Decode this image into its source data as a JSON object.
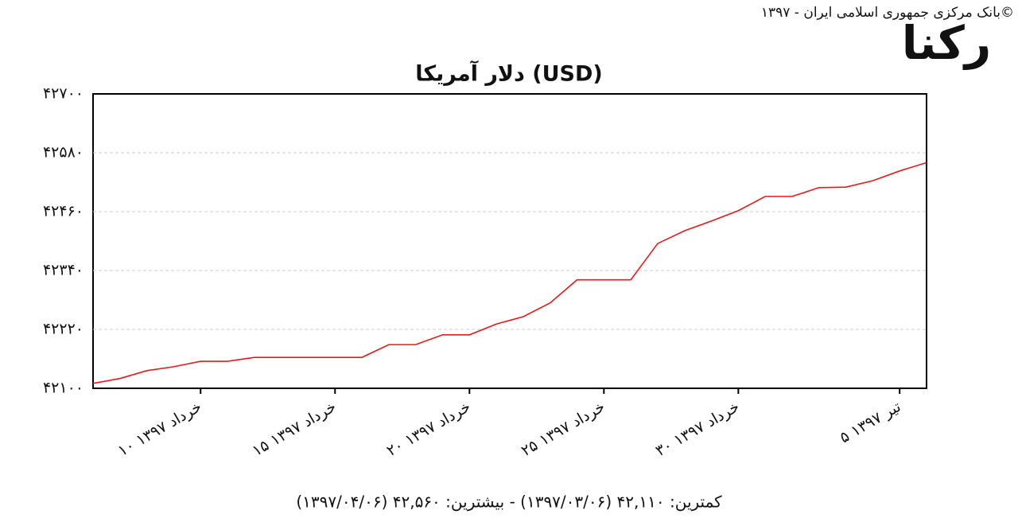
{
  "source": "بانک مرکزی جمهوری اسلامی ایران - ۱۳۹۷©",
  "logo": "رکنا",
  "summary": "کمترین: ۴۲,۱۱۰ (۱۳۹۷/۰۳/۰۶) - بیشترین: ۴۲,۵۶۰ (۱۳۹۷/۰۴/۰۶)",
  "chart_data": {
    "type": "line",
    "title": "دلار آمریکا (USD)",
    "x": [
      6,
      7,
      8,
      9,
      10,
      11,
      12,
      13,
      14,
      15,
      16,
      17,
      18,
      19,
      20,
      21,
      22,
      23,
      24,
      25,
      26,
      27,
      28,
      29,
      30,
      31,
      32,
      33,
      34,
      35,
      36,
      37
    ],
    "series": [
      {
        "name": "USD",
        "color": "#e8191b",
        "values": [
          42110,
          42120,
          42136,
          42144,
          42155,
          42155,
          42163,
          42163,
          42163,
          42163,
          42163,
          42189,
          42189,
          42209,
          42209,
          42231,
          42246,
          42274,
          42321,
          42321,
          42321,
          42395,
          42421,
          42441,
          42462,
          42491,
          42491,
          42509,
          42510,
          42523,
          42543,
          42560
        ]
      }
    ],
    "xlim": [
      6,
      37
    ],
    "xticks": [
      {
        "value": 10,
        "label": "۱۰ خرداد ۱۳۹۷"
      },
      {
        "value": 15,
        "label": "۱۵ خرداد ۱۳۹۷"
      },
      {
        "value": 20,
        "label": "۲۰ خرداد ۱۳۹۷"
      },
      {
        "value": 25,
        "label": "۲۵ خرداد ۱۳۹۷"
      },
      {
        "value": 30,
        "label": "۳۰ خرداد ۱۳۹۷"
      },
      {
        "value": 36,
        "label": "۵ تیر ۱۳۹۷"
      }
    ],
    "ylim": [
      42100,
      42700
    ],
    "yticks": [
      {
        "value": 42100,
        "label": "۴۲۱۰۰"
      },
      {
        "value": 42220,
        "label": "۴۲۲۲۰"
      },
      {
        "value": 42340,
        "label": "۴۲۳۴۰"
      },
      {
        "value": 42460,
        "label": "۴۲۴۶۰"
      },
      {
        "value": 42580,
        "label": "۴۲۵۸۰"
      },
      {
        "value": 42700,
        "label": "۴۲۷۰۰"
      }
    ],
    "grid": true
  }
}
